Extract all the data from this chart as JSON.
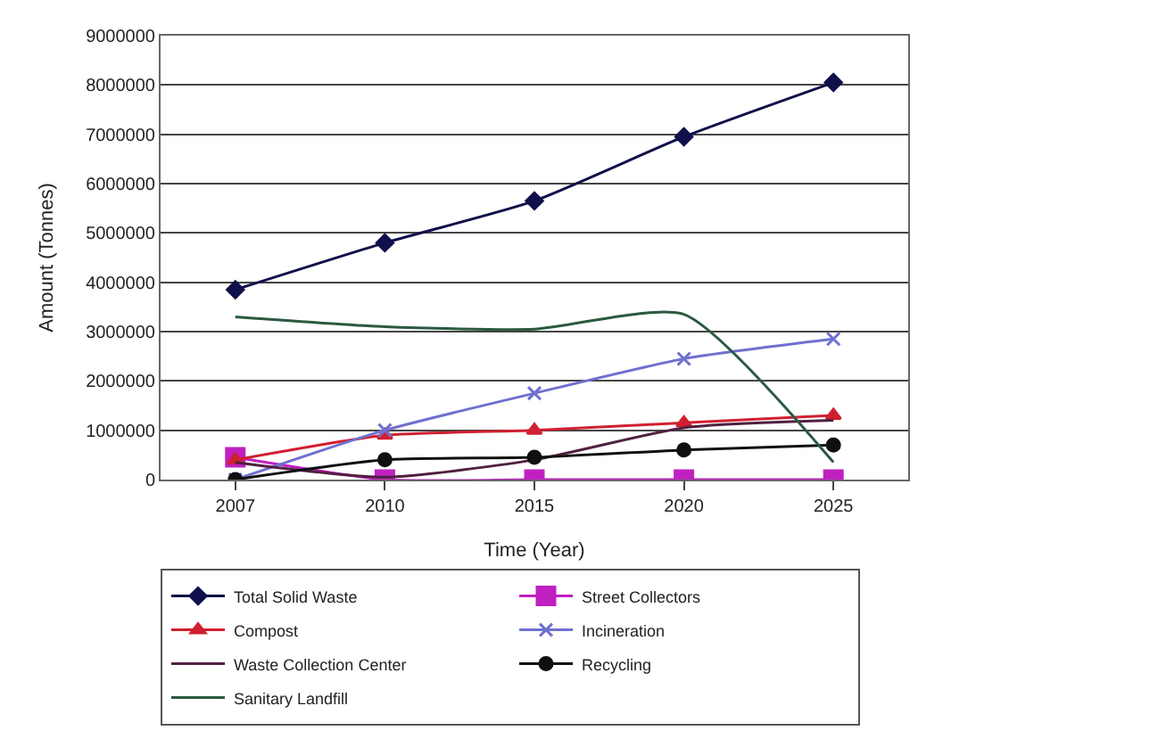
{
  "chart_data": {
    "type": "line",
    "xlabel": "Time (Year)",
    "ylabel": "Amount (Tonnes)",
    "categories": [
      "2007",
      "2010",
      "2015",
      "2020",
      "2025"
    ],
    "ylim": [
      0,
      9000000
    ],
    "yticks": [
      0,
      1000000,
      2000000,
      3000000,
      4000000,
      5000000,
      6000000,
      7000000,
      8000000,
      9000000
    ],
    "grid": "y",
    "legend": "bottom",
    "series": [
      {
        "name": "Total Solid Waste",
        "color": "#10104a",
        "marker": "diamond",
        "values": [
          3850000,
          4800000,
          5650000,
          6950000,
          8050000
        ]
      },
      {
        "name": "Street Collectors",
        "color": "#c020c0",
        "marker": "square",
        "values": [
          450000,
          0,
          0,
          0,
          0
        ]
      },
      {
        "name": "Compost",
        "color": "#d02030",
        "marker": "triangle",
        "values": [
          400000,
          900000,
          1000000,
          1150000,
          1300000
        ]
      },
      {
        "name": "Incineration",
        "color": "#7070d0",
        "marker": "cross",
        "values": [
          0,
          1000000,
          1750000,
          2450000,
          2850000
        ]
      },
      {
        "name": "Waste Collection Center",
        "color": "#502040",
        "marker": "none",
        "values": [
          350000,
          50000,
          400000,
          1050000,
          1200000
        ]
      },
      {
        "name": "Recycling",
        "color": "#101010",
        "marker": "circle",
        "values": [
          0,
          400000,
          450000,
          600000,
          700000
        ]
      },
      {
        "name": "Sanitary Landfill",
        "color": "#2a5a40",
        "marker": "none",
        "values": [
          3300000,
          3100000,
          3050000,
          3350000,
          350000
        ]
      }
    ]
  }
}
